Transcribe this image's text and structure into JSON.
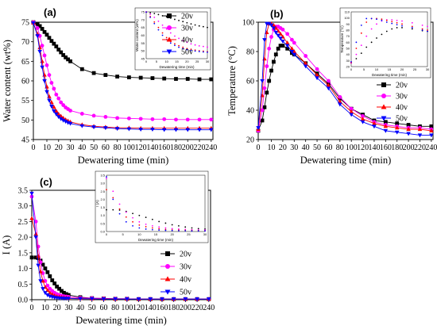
{
  "chart_data": [
    {
      "type": "line",
      "panel_label": "(a)",
      "xlabel": "Dewatering time (min)",
      "ylabel": "Water content (wt%)",
      "xlim": [
        0,
        240
      ],
      "ylim": [
        45,
        75
      ],
      "xticks": [
        0,
        10,
        20,
        30,
        40,
        50,
        60,
        80,
        100,
        120,
        140,
        160,
        180,
        200,
        220,
        240
      ],
      "yticks": [
        45,
        50,
        55,
        60,
        65,
        70,
        75
      ],
      "legend_position": "top-left",
      "series": [
        {
          "name": "20v",
          "color": "#000000",
          "marker": "square",
          "x": [
            0,
            2,
            4,
            6,
            8,
            10,
            12,
            14,
            16,
            18,
            20,
            22,
            24,
            26,
            28,
            30,
            40,
            50,
            60,
            80,
            100,
            120,
            140,
            160,
            180,
            200,
            220,
            240
          ],
          "y": [
            75,
            74.5,
            74,
            73.3,
            72.5,
            71.8,
            71,
            70.2,
            69.5,
            68.8,
            68,
            67.3,
            66.6,
            66,
            65.5,
            65,
            63,
            62,
            61.5,
            61.1,
            60.9,
            60.8,
            60.7,
            60.6,
            60.5,
            60.5,
            60.4,
            60.4
          ]
        },
        {
          "name": "30v",
          "color": "#ff00ff",
          "marker": "circle",
          "x": [
            0,
            2,
            4,
            6,
            8,
            10,
            12,
            14,
            16,
            18,
            20,
            22,
            24,
            26,
            28,
            30,
            40,
            50,
            60,
            80,
            100,
            120,
            140,
            160,
            180,
            200,
            220,
            240
          ],
          "y": [
            75,
            73.5,
            71.5,
            69,
            66.5,
            64,
            61.5,
            59.5,
            58,
            56.5,
            55.5,
            54.5,
            53.8,
            53.2,
            52.8,
            52.4,
            51.6,
            51.1,
            50.8,
            50.5,
            50.4,
            50.3,
            50.2,
            50.2,
            50.1,
            50.1,
            50.1,
            50.1
          ]
        },
        {
          "name": "40v",
          "color": "#ff0000",
          "marker": "triangle-up",
          "x": [
            0,
            2,
            4,
            6,
            8,
            10,
            12,
            14,
            16,
            18,
            20,
            22,
            24,
            26,
            28,
            30,
            40,
            50,
            60,
            80,
            100,
            120,
            140,
            160,
            180,
            200,
            220,
            240
          ],
          "y": [
            74.8,
            72,
            68.5,
            65,
            61.5,
            58.5,
            56,
            54.5,
            53.3,
            52.3,
            51.5,
            51,
            50.5,
            50.1,
            49.8,
            49.5,
            48.8,
            48.4,
            48.2,
            48,
            48,
            47.9,
            47.9,
            47.9,
            47.9,
            47.9,
            47.9,
            47.9
          ]
        },
        {
          "name": "50v",
          "color": "#0000ff",
          "marker": "triangle-down",
          "x": [
            0,
            2,
            4,
            6,
            8,
            10,
            12,
            14,
            16,
            18,
            20,
            22,
            24,
            26,
            28,
            30,
            40,
            50,
            60,
            80,
            100,
            120,
            140,
            160,
            180,
            200,
            220,
            240
          ],
          "y": [
            74.8,
            71.5,
            67.5,
            63.5,
            60,
            57.2,
            55,
            53.5,
            52.3,
            51.5,
            50.8,
            50.3,
            49.9,
            49.6,
            49.3,
            49.1,
            48.5,
            48.2,
            48,
            47.8,
            47.7,
            47.6,
            47.6,
            47.5,
            47.5,
            47.5,
            47.5,
            47.5
          ]
        }
      ],
      "inset": {
        "xlabel": "Dewatering time (min)",
        "ylabel": "Water content (wt%)",
        "xlim": [
          0,
          30
        ],
        "ylim": [
          45,
          75
        ],
        "xticks": [
          0,
          5,
          10,
          15,
          20,
          25,
          30
        ],
        "yticks": [
          45,
          50,
          55,
          60,
          65,
          70,
          75
        ],
        "shows": "same series, first 30 min"
      }
    },
    {
      "type": "line",
      "panel_label": "(b)",
      "xlabel": "Dewatering time (min)",
      "ylabel": "Temperature (°C)",
      "xlim": [
        0,
        240
      ],
      "ylim": [
        20,
        100
      ],
      "xticks": [
        0,
        10,
        20,
        30,
        40,
        50,
        60,
        80,
        100,
        120,
        140,
        160,
        180,
        200,
        220,
        240
      ],
      "yticks": [
        20,
        40,
        60,
        80,
        100
      ],
      "legend_position": "right",
      "series": [
        {
          "name": "20v",
          "color": "#000000",
          "marker": "square",
          "x": [
            0,
            2,
            4,
            6,
            8,
            10,
            12,
            14,
            16,
            18,
            20,
            24,
            28,
            30,
            40,
            50,
            60,
            80,
            100,
            120,
            140,
            160,
            180,
            200,
            220,
            240
          ],
          "y": [
            26,
            33,
            42,
            52,
            60,
            67,
            73,
            78,
            82,
            84,
            84,
            82,
            79,
            78,
            72,
            65,
            58,
            48,
            41,
            37,
            33,
            32,
            31,
            30,
            29,
            29
          ]
        },
        {
          "name": "30v",
          "color": "#ff00ff",
          "marker": "circle",
          "x": [
            0,
            2,
            4,
            6,
            8,
            10,
            12,
            14,
            16,
            18,
            20,
            24,
            28,
            30,
            40,
            50,
            60,
            80,
            100,
            120,
            140,
            160,
            180,
            200,
            220,
            240
          ],
          "y": [
            26,
            40,
            55,
            70,
            82,
            90,
            95,
            97,
            97,
            96,
            95,
            92,
            88,
            86,
            77,
            68,
            60,
            49,
            41,
            36,
            32,
            30,
            29,
            28,
            28,
            27
          ]
        },
        {
          "name": "40v",
          "color": "#ff0000",
          "marker": "triangle-up",
          "x": [
            0,
            2,
            4,
            6,
            8,
            10,
            12,
            14,
            16,
            18,
            20,
            24,
            28,
            30,
            40,
            50,
            60,
            80,
            100,
            120,
            140,
            160,
            180,
            200,
            220,
            240
          ],
          "y": [
            27,
            50,
            75,
            93,
            99,
            99,
            98,
            96,
            94,
            92,
            90,
            86,
            82,
            80,
            72,
            64,
            57,
            46,
            39,
            34,
            31,
            29,
            28,
            27,
            27,
            26
          ]
        },
        {
          "name": "50v",
          "color": "#0000ff",
          "marker": "triangle-down",
          "x": [
            0,
            2,
            4,
            6,
            8,
            10,
            12,
            14,
            16,
            18,
            20,
            24,
            28,
            30,
            40,
            50,
            60,
            80,
            100,
            120,
            140,
            160,
            180,
            200,
            220,
            240
          ],
          "y": [
            28,
            60,
            88,
            99,
            99,
            98,
            96,
            93,
            91,
            89,
            87,
            84,
            80,
            78,
            70,
            62,
            55,
            44,
            37,
            32,
            29,
            26,
            25,
            24,
            23,
            23
          ]
        }
      ],
      "inset": {
        "xlabel": "Dewatering time (min)",
        "ylabel": "Temperature (°C)",
        "xlim": [
          0,
          30
        ],
        "ylim": [
          20,
          110
        ],
        "xticks": [
          0,
          5,
          10,
          15,
          20,
          25,
          30
        ],
        "yticks": [
          20,
          30,
          40,
          50,
          60,
          70,
          80,
          90,
          100,
          110
        ],
        "shows": "same series, first 30 min"
      }
    },
    {
      "type": "line",
      "panel_label": "(c)",
      "xlabel": "Dewatering time (min)",
      "ylabel": "I (A)",
      "xlim": [
        0,
        240
      ],
      "ylim": [
        0,
        3.5
      ],
      "xticks": [
        0,
        10,
        20,
        30,
        40,
        50,
        60,
        80,
        100,
        120,
        140,
        160,
        180,
        200,
        220,
        240
      ],
      "yticks": [
        0.0,
        0.5,
        1.0,
        1.5,
        2.0,
        2.5,
        3.0,
        3.5
      ],
      "legend_position": "right",
      "series": [
        {
          "name": "20v",
          "color": "#000000",
          "marker": "square",
          "x": [
            0,
            2,
            4,
            6,
            8,
            10,
            12,
            14,
            16,
            18,
            20,
            22,
            24,
            26,
            28,
            30,
            40,
            50,
            60,
            80,
            100,
            120,
            140,
            160,
            180,
            200,
            220,
            240
          ],
          "y": [
            1.35,
            1.35,
            1.33,
            1.25,
            1.12,
            1.0,
            0.88,
            0.75,
            0.62,
            0.52,
            0.42,
            0.35,
            0.28,
            0.22,
            0.18,
            0.15,
            0.08,
            0.05,
            0.04,
            0.03,
            0.03,
            0.02,
            0.02,
            0.02,
            0.02,
            0.02,
            0.02,
            0.02
          ]
        },
        {
          "name": "30v",
          "color": "#ff00ff",
          "marker": "circle",
          "x": [
            0,
            2,
            4,
            6,
            8,
            10,
            12,
            14,
            16,
            18,
            20,
            22,
            24,
            26,
            28,
            30,
            40,
            50,
            60,
            80,
            100,
            120,
            140,
            160,
            180,
            200,
            220,
            240
          ],
          "y": [
            3.3,
            2.5,
            1.7,
            1.2,
            0.85,
            0.6,
            0.45,
            0.35,
            0.28,
            0.22,
            0.18,
            0.15,
            0.13,
            0.11,
            0.1,
            0.09,
            0.06,
            0.05,
            0.04,
            0.03,
            0.03,
            0.02,
            0.02,
            0.02,
            0.02,
            0.02,
            0.02,
            0.02
          ]
        },
        {
          "name": "40v",
          "color": "#ff0000",
          "marker": "triangle-up",
          "x": [
            0,
            2,
            4,
            6,
            8,
            10,
            12,
            14,
            16,
            18,
            20,
            22,
            24,
            26,
            28,
            30,
            40,
            50,
            60,
            80,
            100,
            120,
            140,
            160,
            180,
            200,
            220,
            240
          ],
          "y": [
            2.6,
            2.1,
            1.4,
            0.9,
            0.6,
            0.4,
            0.3,
            0.22,
            0.17,
            0.13,
            0.1,
            0.09,
            0.08,
            0.07,
            0.06,
            0.05,
            0.04,
            0.03,
            0.03,
            0.02,
            0.02,
            0.02,
            0.02,
            0.02,
            0.02,
            0.02,
            0.02,
            0.02
          ]
        },
        {
          "name": "50v",
          "color": "#0000ff",
          "marker": "triangle-down",
          "x": [
            0,
            2,
            4,
            6,
            8,
            10,
            12,
            14,
            16,
            18,
            20,
            22,
            24,
            26,
            28,
            30,
            40,
            50,
            60,
            80,
            100,
            120,
            140,
            160,
            180,
            200,
            220,
            240
          ],
          "y": [
            3.4,
            2.0,
            1.1,
            0.6,
            0.35,
            0.22,
            0.15,
            0.11,
            0.09,
            0.07,
            0.06,
            0.05,
            0.05,
            0.04,
            0.04,
            0.04,
            0.03,
            0.03,
            0.02,
            0.02,
            0.02,
            0.02,
            0.02,
            0.02,
            0.02,
            0.02,
            0.02,
            0.02
          ]
        }
      ],
      "inset": {
        "xlabel": "Dewatering time (min)",
        "ylabel": "I (A)",
        "xlim": [
          0,
          30
        ],
        "ylim": [
          0,
          3.5
        ],
        "xticks": [
          0,
          5,
          10,
          15,
          20,
          25,
          30
        ],
        "yticks": [
          0.0,
          0.5,
          1.0,
          1.5,
          2.0,
          2.5,
          3.0,
          3.5
        ],
        "shows": "same series, first 30 min"
      }
    }
  ]
}
